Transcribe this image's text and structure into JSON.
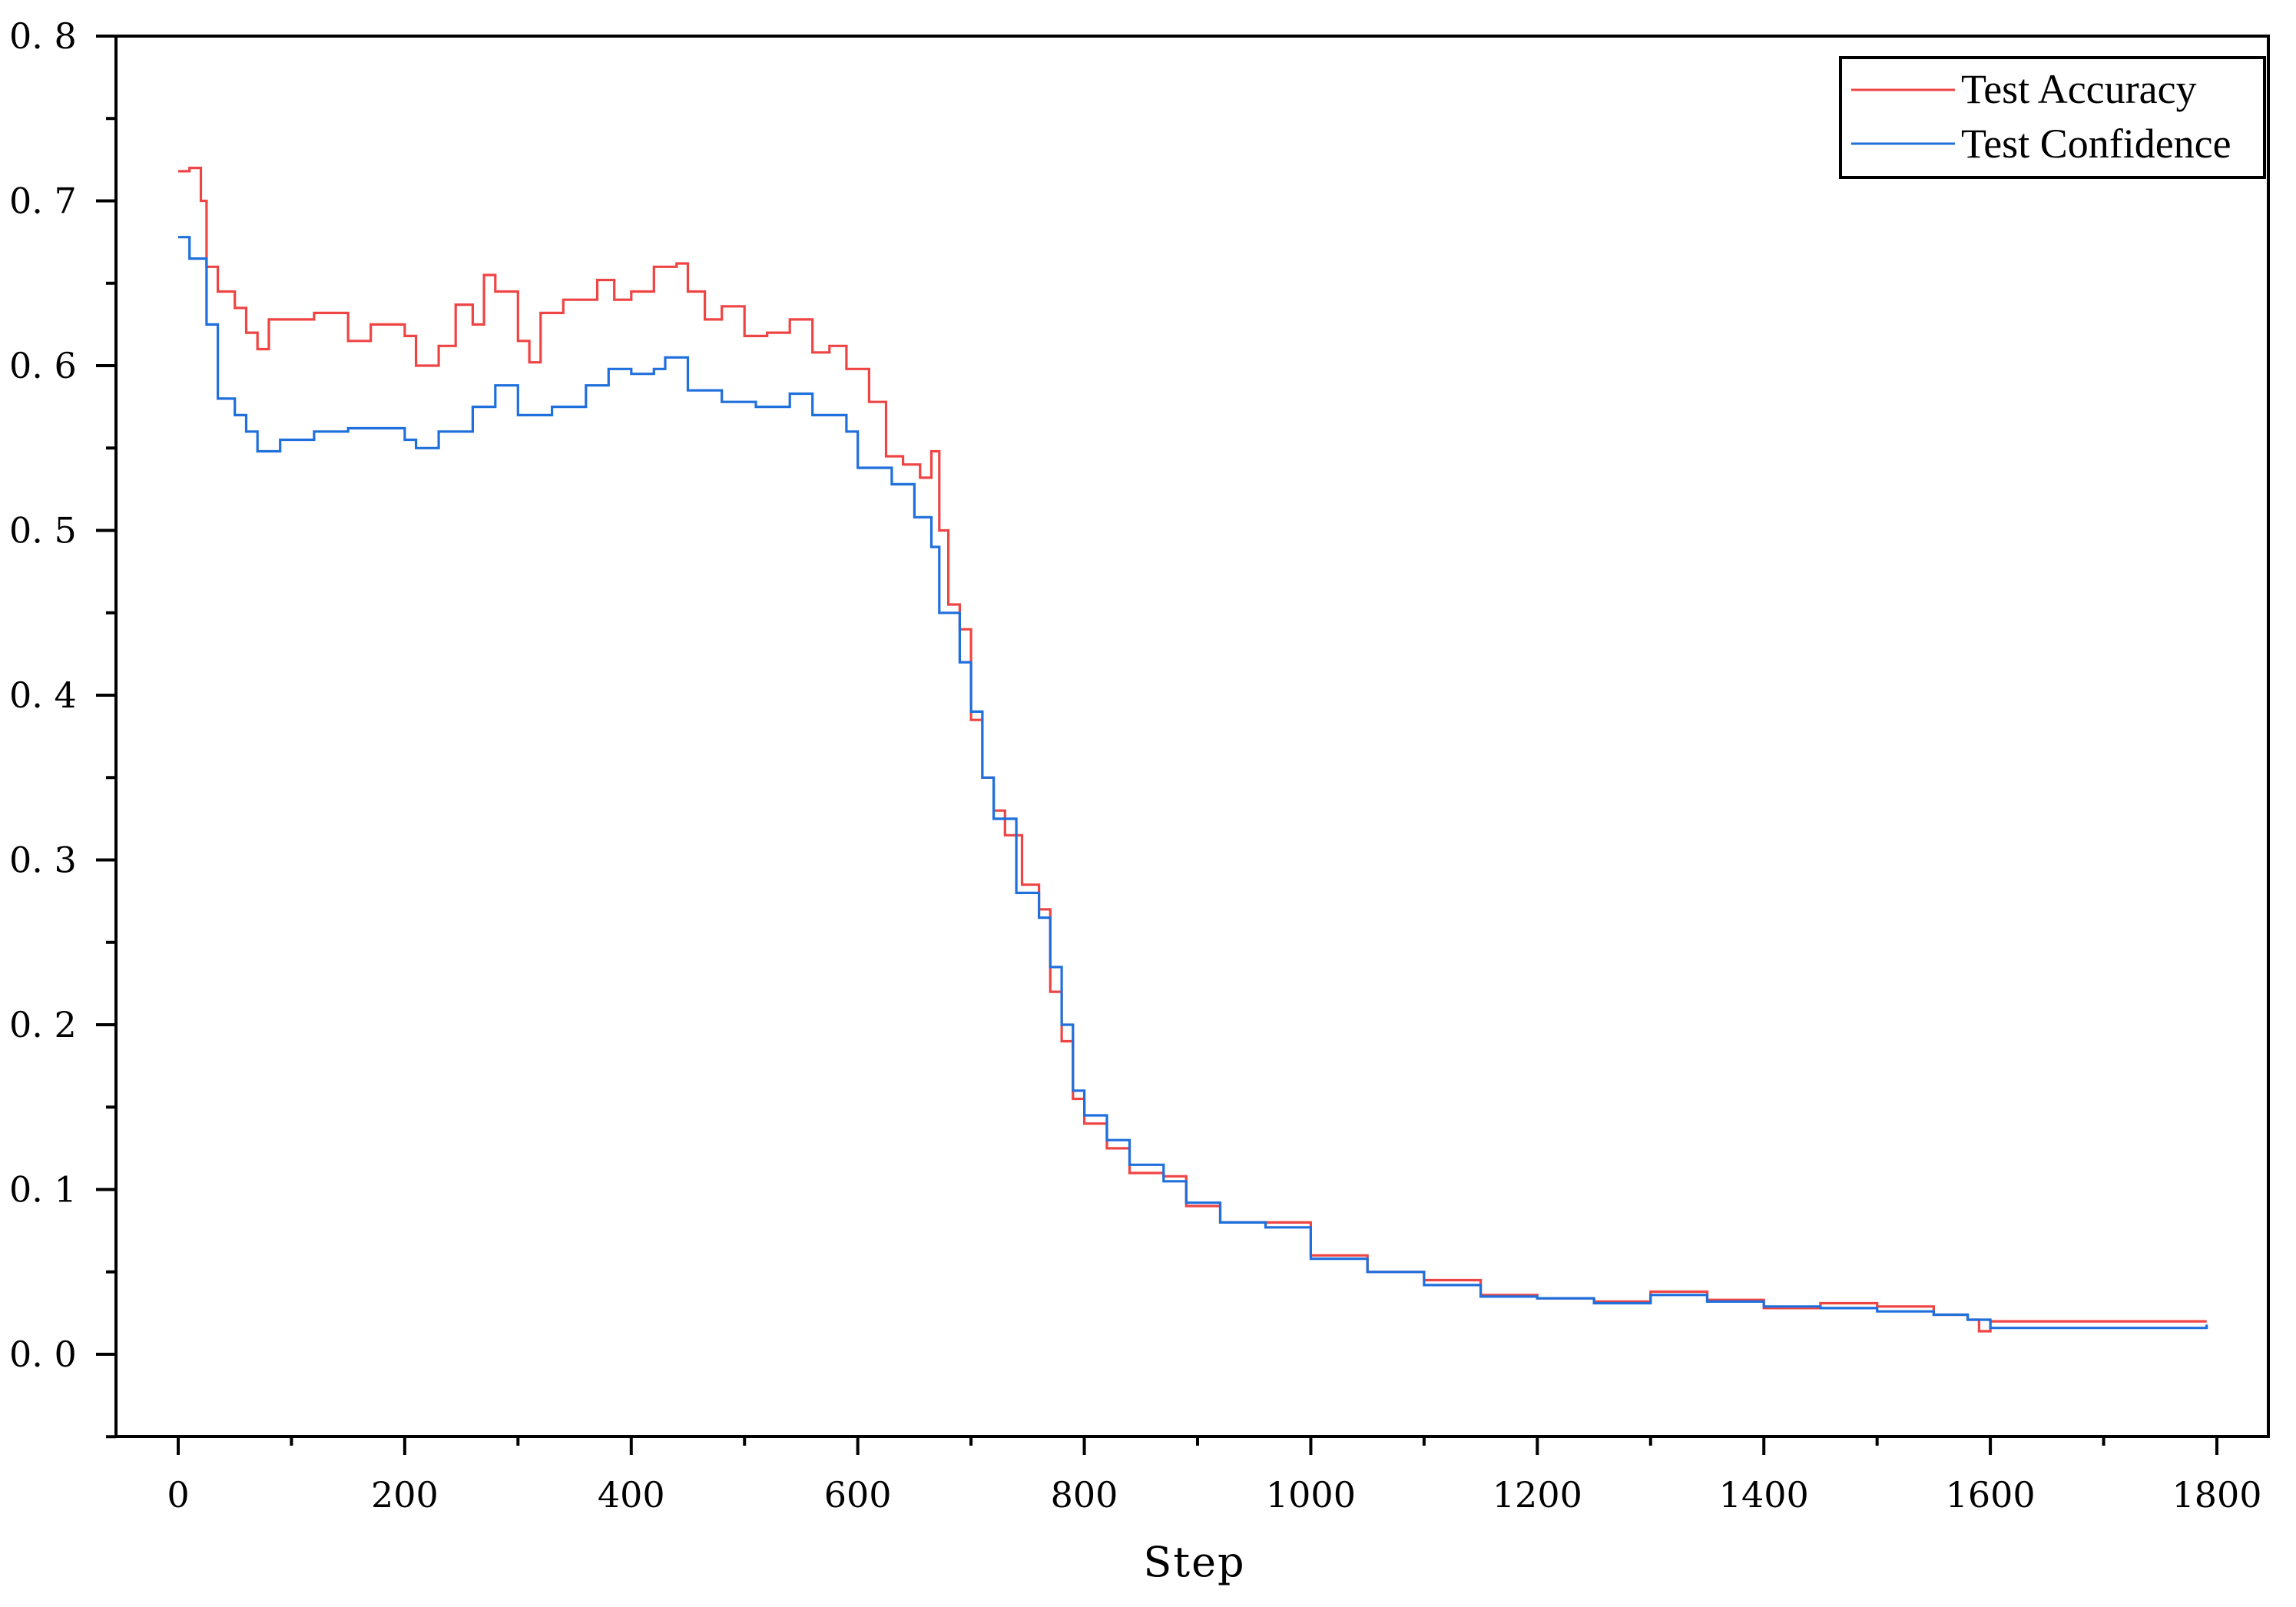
{
  "chart_data": {
    "type": "line",
    "title": "",
    "xlabel": "Step",
    "ylabel": "",
    "xlim": [
      -55,
      1840
    ],
    "ylim": [
      -0.05,
      0.8
    ],
    "x_ticks": [
      0,
      200,
      400,
      600,
      800,
      1000,
      1200,
      1400,
      1600,
      1800
    ],
    "x_minor_ticks": [
      100,
      300,
      500,
      700,
      900,
      1100,
      1300,
      1500,
      1700
    ],
    "y_ticks": [
      0.0,
      0.1,
      0.2,
      0.3,
      0.4,
      0.5,
      0.6,
      0.7,
      0.8
    ],
    "y_tick_labels": [
      "0. 0",
      "0. 1",
      "0. 2",
      "0. 3",
      "0. 4",
      "0. 5",
      "0. 6",
      "0. 7",
      "0. 8"
    ],
    "y_minor_ticks": [
      -0.05,
      0.05,
      0.15,
      0.25,
      0.35,
      0.45,
      0.55,
      0.65,
      0.75
    ],
    "grid": false,
    "legend_position": "upper right",
    "series": [
      {
        "name": "Test Accuracy",
        "color": "#EF4444",
        "x": [
          0,
          10,
          20,
          25,
          35,
          50,
          60,
          70,
          80,
          120,
          150,
          170,
          200,
          210,
          230,
          245,
          260,
          270,
          280,
          300,
          310,
          320,
          340,
          370,
          385,
          400,
          420,
          440,
          450,
          465,
          480,
          500,
          520,
          540,
          560,
          575,
          590,
          610,
          625,
          640,
          655,
          665,
          672,
          680,
          690,
          700,
          710,
          720,
          730,
          745,
          760,
          770,
          780,
          790,
          800,
          820,
          840,
          870,
          890,
          920,
          960,
          1000,
          1050,
          1100,
          1150,
          1200,
          1250,
          1300,
          1350,
          1400,
          1450,
          1500,
          1550,
          1580,
          1590,
          1600,
          1791
        ],
        "values": [
          0.718,
          0.72,
          0.7,
          0.66,
          0.645,
          0.635,
          0.62,
          0.61,
          0.628,
          0.632,
          0.615,
          0.625,
          0.618,
          0.6,
          0.612,
          0.637,
          0.625,
          0.655,
          0.645,
          0.615,
          0.602,
          0.632,
          0.64,
          0.652,
          0.64,
          0.645,
          0.66,
          0.662,
          0.645,
          0.628,
          0.636,
          0.618,
          0.62,
          0.628,
          0.608,
          0.612,
          0.598,
          0.578,
          0.545,
          0.54,
          0.532,
          0.548,
          0.5,
          0.455,
          0.44,
          0.385,
          0.35,
          0.33,
          0.315,
          0.285,
          0.27,
          0.22,
          0.19,
          0.155,
          0.14,
          0.125,
          0.11,
          0.108,
          0.09,
          0.08,
          0.08,
          0.06,
          0.05,
          0.045,
          0.036,
          0.034,
          0.032,
          0.038,
          0.033,
          0.028,
          0.031,
          0.029,
          0.024,
          0.021,
          0.014,
          0.02,
          0.02
        ]
      },
      {
        "name": "Test Confidence",
        "color": "#1F6FDC",
        "x": [
          0,
          10,
          25,
          35,
          50,
          60,
          70,
          90,
          120,
          150,
          200,
          210,
          230,
          260,
          280,
          300,
          330,
          360,
          380,
          400,
          420,
          430,
          450,
          480,
          510,
          540,
          560,
          590,
          600,
          630,
          650,
          665,
          672,
          690,
          700,
          710,
          720,
          740,
          760,
          770,
          780,
          790,
          800,
          820,
          840,
          870,
          890,
          920,
          960,
          1000,
          1050,
          1100,
          1150,
          1200,
          1250,
          1300,
          1350,
          1400,
          1450,
          1500,
          1550,
          1580,
          1600,
          1700,
          1791
        ],
        "values": [
          0.678,
          0.665,
          0.625,
          0.58,
          0.57,
          0.56,
          0.548,
          0.555,
          0.56,
          0.562,
          0.555,
          0.55,
          0.56,
          0.575,
          0.588,
          0.57,
          0.575,
          0.588,
          0.598,
          0.595,
          0.598,
          0.605,
          0.585,
          0.578,
          0.575,
          0.583,
          0.57,
          0.56,
          0.538,
          0.528,
          0.508,
          0.49,
          0.45,
          0.42,
          0.39,
          0.35,
          0.325,
          0.28,
          0.265,
          0.235,
          0.2,
          0.16,
          0.145,
          0.13,
          0.115,
          0.105,
          0.092,
          0.08,
          0.077,
          0.058,
          0.05,
          0.042,
          0.035,
          0.034,
          0.031,
          0.036,
          0.032,
          0.029,
          0.028,
          0.026,
          0.024,
          0.021,
          0.016,
          0.016,
          0.018
        ]
      }
    ]
  },
  "legend": {
    "items": [
      {
        "label": "Test Accuracy",
        "color": "#EF4444"
      },
      {
        "label": "Test Confidence",
        "color": "#1F6FDC"
      }
    ]
  },
  "axes": {
    "x_label": "Step",
    "x_tick_labels": [
      "0",
      "200",
      "400",
      "600",
      "800",
      "1000",
      "1200",
      "1400",
      "1600",
      "1800"
    ],
    "y_tick_labels": [
      "0. 0",
      "0. 1",
      "0. 2",
      "0. 3",
      "0. 4",
      "0. 5",
      "0. 6",
      "0. 7",
      "0. 8"
    ]
  }
}
